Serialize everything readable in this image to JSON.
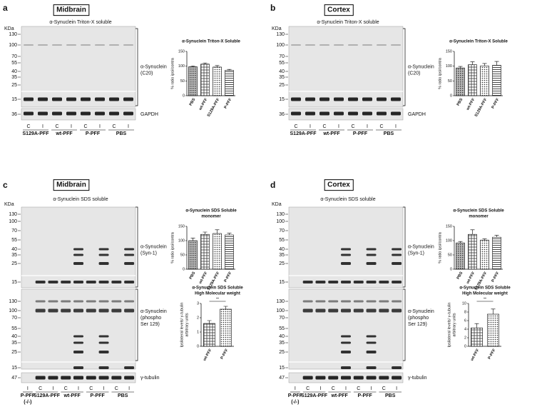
{
  "panels": [
    {
      "letter": "a",
      "region": "Midbrain",
      "blot_title": "α-Synuclein Triton-X soluble",
      "kda_label": "KDa",
      "blots": [
        {
          "kda": [
            130,
            100,
            70,
            55,
            40,
            35,
            25,
            15
          ],
          "protein": [
            "α-Synuclein",
            "(C20)"
          ]
        },
        {
          "kda": [
            36
          ],
          "protein": [
            "GAPDH"
          ]
        }
      ],
      "lane_marks": [
        "C",
        "I",
        "C",
        "I",
        "C",
        "I",
        "C",
        "I"
      ],
      "groups": [
        [
          "S129A-PFF"
        ],
        [
          "wt-PFF"
        ],
        [
          "P-PFF"
        ],
        [
          "PBS"
        ]
      ],
      "charts": [
        {
          "title": [
            "α-Synuclein Triton-X Soluble"
          ],
          "ylabel": [
            "% ratio ipsi/contra"
          ],
          "categories": [
            "PBS",
            "wt-PFF",
            "S129A-PFF",
            "P-PFF"
          ],
          "values": [
            98,
            107,
            97,
            86
          ],
          "errors": [
            3,
            4,
            5,
            3
          ],
          "ylim": [
            0,
            150
          ],
          "yticks": [
            0,
            50,
            100,
            150
          ]
        }
      ]
    },
    {
      "letter": "b",
      "region": "Cortex",
      "blot_title": "α-Synuclein Triton-X soluble",
      "kda_label": "KDa",
      "blots": [
        {
          "kda": [
            130,
            100,
            70,
            55,
            40,
            35,
            25,
            15
          ],
          "protein": [
            "α-Synuclein",
            "(C20)"
          ]
        },
        {
          "kda": [
            36
          ],
          "protein": [
            "GAPDH"
          ]
        }
      ],
      "lane_marks": [
        "C",
        "I",
        "C",
        "I",
        "C",
        "I",
        "C",
        "I"
      ],
      "groups": [
        [
          "S129A-PFF"
        ],
        [
          "wt-PFF"
        ],
        [
          "P-PFF"
        ],
        [
          "PBS"
        ]
      ],
      "charts": [
        {
          "title": [
            "α-Synuclein Triton-X Soluble"
          ],
          "ylabel": [
            "% ratio ipsi/contra"
          ],
          "categories": [
            "PBS",
            "wt-PFF",
            "S129A-PFF",
            "P-PFF"
          ],
          "values": [
            94,
            105,
            101,
            103
          ],
          "errors": [
            5,
            10,
            8,
            13
          ],
          "ylim": [
            0,
            150
          ],
          "yticks": [
            0,
            50,
            100,
            150
          ]
        }
      ]
    },
    {
      "letter": "c",
      "region": "Midbrain",
      "blot_title": "α-Synuclein SDS soluble",
      "kda_label": "KDa",
      "blots": [
        {
          "kda": [
            130,
            100,
            70,
            55,
            40,
            35,
            25,
            15
          ],
          "protein": [
            "α-Synuclein",
            "(Syn-1)"
          ]
        },
        {
          "kda": [
            130,
            100,
            70,
            55,
            40,
            35,
            25,
            15
          ],
          "protein": [
            "α-Synuclein",
            "(phospho",
            "Ser 129)"
          ]
        },
        {
          "kda": [
            47
          ],
          "protein": [
            "γ-tubulin"
          ]
        }
      ],
      "lane_marks": [
        "I",
        "C",
        "I",
        "C",
        "I",
        "C",
        "I",
        "C",
        "I"
      ],
      "groups": [
        [
          "P-PFF",
          "(-/-)"
        ],
        [
          "S129A-PFF"
        ],
        [
          "wt-PFF"
        ],
        [
          "P-PFF"
        ],
        [
          "PBS"
        ]
      ],
      "charts": [
        {
          "title": [
            "α-Synuclein SDS Soluble",
            "monomer"
          ],
          "ylabel": [
            "% ratio ipsi/contra"
          ],
          "categories": [
            "PBS",
            "wt-PFF",
            "S129A-PFF",
            "P-PFF"
          ],
          "values": [
            100,
            122,
            125,
            120
          ],
          "errors": [
            9,
            8,
            13,
            6
          ],
          "ylim": [
            0,
            150
          ],
          "yticks": [
            0,
            50,
            100,
            150
          ]
        },
        {
          "title": [
            "α-Synuclein SDS Soluble",
            "High Molecular weight"
          ],
          "ylabel": [
            "Ipsilateral levels/ γ-tubulin",
            "arbitrary units"
          ],
          "categories": [
            "wt-PFF",
            "P-PFF"
          ],
          "values": [
            1.6,
            2.6
          ],
          "errors": [
            0.2,
            0.2
          ],
          "ylim": [
            0,
            3
          ],
          "yticks": [
            0,
            1,
            2,
            3
          ],
          "significance": "**"
        }
      ]
    },
    {
      "letter": "d",
      "region": "Cortex",
      "blot_title": "α-Synuclein SDS soluble",
      "kda_label": "KDa",
      "blots": [
        {
          "kda": [
            130,
            100,
            70,
            55,
            40,
            35,
            25,
            15
          ],
          "protein": [
            "α-Synuclein",
            "(Syn-1)"
          ]
        },
        {
          "kda": [
            130,
            100,
            70,
            55,
            40,
            35,
            25,
            15
          ],
          "protein": [
            "α-Synuclein",
            "(phospho",
            "Ser 129)"
          ]
        },
        {
          "kda": [
            47
          ],
          "protein": [
            "γ-tubulin"
          ]
        }
      ],
      "lane_marks": [
        "I",
        "C",
        "I",
        "C",
        "I",
        "C",
        "I",
        "C",
        "I"
      ],
      "groups": [
        [
          "P-PFF",
          "(-/-)"
        ],
        [
          "S129A-PFF"
        ],
        [
          "wt-PFF"
        ],
        [
          "P-PFF"
        ],
        [
          "PBS"
        ]
      ],
      "charts": [
        {
          "title": [
            "α-Synuclein SDS Soluble",
            "monomer"
          ],
          "ylabel": [
            "% ratio ipsi/contra"
          ],
          "categories": [
            "PBS",
            "wt-PFF",
            "S129A-PFF",
            "P-PFF"
          ],
          "values": [
            92,
            122,
            102,
            112
          ],
          "errors": [
            5,
            16,
            4,
            7
          ],
          "ylim": [
            0,
            150
          ],
          "yticks": [
            0,
            50,
            100,
            150
          ]
        },
        {
          "title": [
            "α-Synuclein SDS Soluble",
            "High Molecular weight"
          ],
          "ylabel": [
            "Ipsilateral levels/ γ-tubulin",
            "arbitrary units"
          ],
          "categories": [
            "wt-PFF",
            "P-PFF"
          ],
          "values": [
            4.3,
            7.5
          ],
          "errors": [
            1.0,
            1.2
          ],
          "ylim": [
            0,
            10
          ],
          "yticks": [
            0,
            2,
            4,
            6,
            8,
            10
          ],
          "significance": "**"
        }
      ]
    }
  ]
}
